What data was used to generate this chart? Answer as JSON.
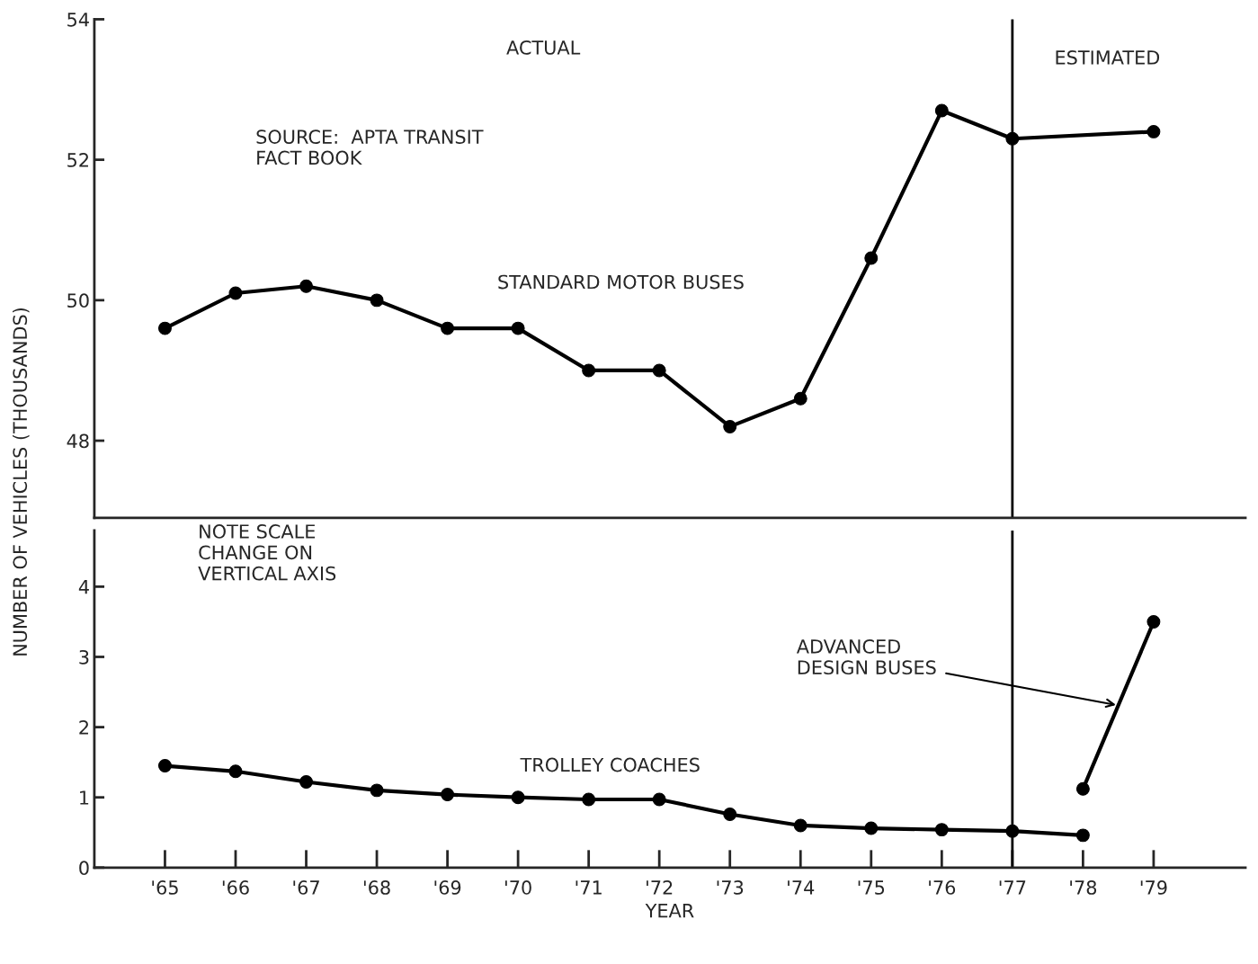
{
  "chart_data": [
    {
      "type": "line",
      "ylabel": "NUMBER OF VEHICLES (THOUSANDS)",
      "annotations": [
        "ACTUAL",
        "ESTIMATED",
        "SOURCE:  APTA TRANSIT\nFACT BOOK"
      ],
      "xlim": [
        1964,
        1980.3
      ],
      "ylim": [
        46.9,
        54
      ],
      "yticks": [
        48,
        50,
        52,
        54
      ],
      "tick_labels": "y",
      "grid": false,
      "legend": false,
      "marker": "circle",
      "line_style": "solid",
      "ref_lines": [
        {
          "axis": "x",
          "value": 1977,
          "color": "#000000"
        }
      ],
      "series": [
        {
          "name": "STANDARD MOTOR BUSES",
          "color": "#000000",
          "x": [
            1965,
            1966,
            1967,
            1968,
            1969,
            1970,
            1971,
            1972,
            1973,
            1974,
            1975,
            1976,
            1977,
            1979
          ],
          "values": [
            49.6,
            50.1,
            50.2,
            50.0,
            49.6,
            49.6,
            49.0,
            49.0,
            48.2,
            48.6,
            50.6,
            52.7,
            52.3,
            52.4
          ]
        }
      ]
    },
    {
      "type": "line",
      "xlabel": "YEAR",
      "annotations": [
        "NOTE SCALE\nCHANGE ON\nVERTICAL AXIS"
      ],
      "xlim": [
        1964,
        1980.3
      ],
      "xticks": [
        {
          "value": 1965,
          "label": "'65"
        },
        {
          "value": 1966,
          "label": "'66"
        },
        {
          "value": 1967,
          "label": "'67"
        },
        {
          "value": 1968,
          "label": "'68"
        },
        {
          "value": 1969,
          "label": "'69"
        },
        {
          "value": 1970,
          "label": "'70"
        },
        {
          "value": 1971,
          "label": "'71"
        },
        {
          "value": 1972,
          "label": "'72"
        },
        {
          "value": 1973,
          "label": "'73"
        },
        {
          "value": 1974,
          "label": "'74"
        },
        {
          "value": 1975,
          "label": "'75"
        },
        {
          "value": 1976,
          "label": "'76"
        },
        {
          "value": 1977,
          "label": "'77"
        },
        {
          "value": 1978,
          "label": "'78"
        },
        {
          "value": 1979,
          "label": "'79"
        }
      ],
      "ylim": [
        0,
        4.8
      ],
      "yticks": [
        0,
        1,
        2,
        3,
        4
      ],
      "grid": false,
      "legend": false,
      "marker": "circle",
      "line_style": "solid",
      "ref_lines": [
        {
          "axis": "x",
          "value": 1977,
          "color": "#000000"
        }
      ],
      "series": [
        {
          "name": "TROLLEY COACHES",
          "color": "#000000",
          "x": [
            1965,
            1966,
            1967,
            1968,
            1969,
            1970,
            1971,
            1972,
            1973,
            1974,
            1975,
            1976,
            1977,
            1978
          ],
          "values": [
            1.45,
            1.37,
            1.22,
            1.1,
            1.04,
            1.0,
            0.97,
            0.97,
            0.76,
            0.6,
            0.56,
            0.54,
            0.52,
            0.46
          ]
        },
        {
          "name": "ADVANCED\nDESIGN BUSES",
          "color": "#000000",
          "x": [
            1978,
            1979
          ],
          "values": [
            1.12,
            3.5
          ]
        }
      ]
    }
  ]
}
